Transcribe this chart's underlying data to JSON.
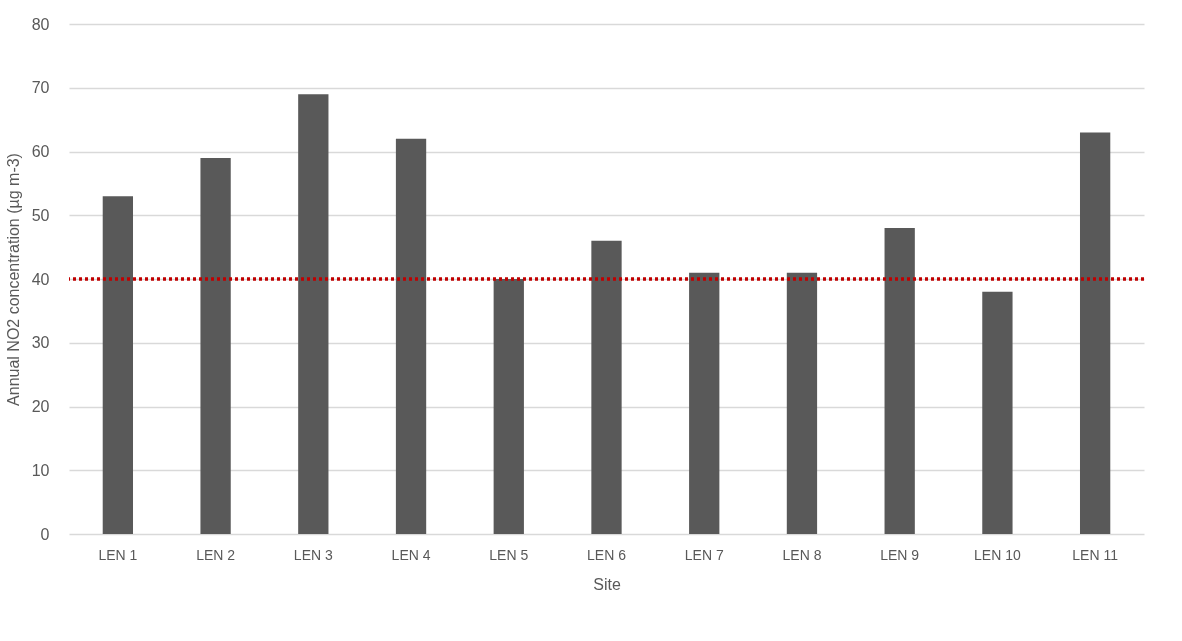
{
  "chart_data": {
    "type": "bar",
    "xlabel": "Site",
    "ylabel": "Annual NO2 concentration (µg m-3)",
    "categories": [
      "LEN 1",
      "LEN 2",
      "LEN 3",
      "LEN 4",
      "LEN 5",
      "LEN 6",
      "LEN 7",
      "LEN 8",
      "LEN 9",
      "LEN 10",
      "LEN 11"
    ],
    "values": [
      53,
      59,
      69,
      62,
      40,
      46,
      41,
      41,
      48,
      38,
      63
    ],
    "color": "#595959",
    "ylim": [
      0,
      80
    ],
    "yticks": [
      0,
      10,
      20,
      30,
      40,
      50,
      60,
      70,
      80
    ],
    "grid": "y",
    "ref_lines": [
      {
        "axis": "y",
        "value": 40,
        "color": "#c00000",
        "line_style": "dotted"
      }
    ]
  }
}
